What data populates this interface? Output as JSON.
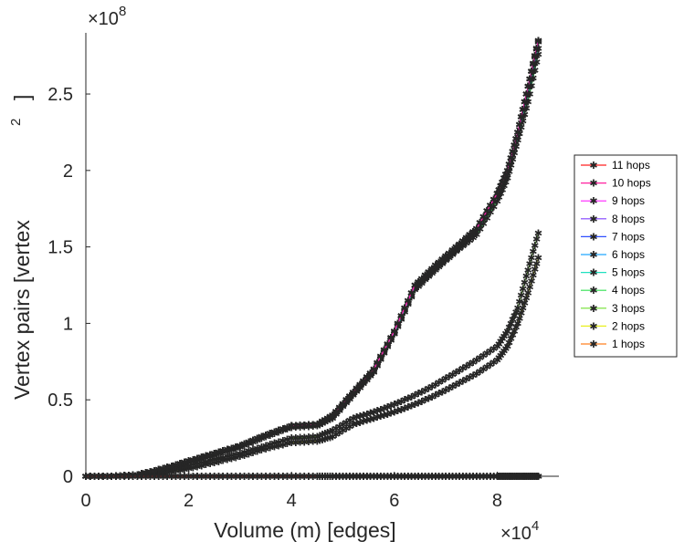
{
  "chart_data": {
    "type": "line",
    "title": "",
    "xlabel": "Volume (m) [edges]",
    "ylabel": "Vertex pairs [vertex",
    "ylabel_superscript": "2",
    "ylabel_close": "]",
    "x_multiplier": {
      "base": "×10",
      "exponent": "4"
    },
    "y_multiplier": {
      "base": "×10",
      "exponent": "8"
    },
    "xlim": [
      0,
      9.2
    ],
    "ylim": [
      0,
      2.9
    ],
    "x_ticks": [
      {
        "value": 0,
        "label": "0"
      },
      {
        "value": 2,
        "label": "2"
      },
      {
        "value": 4,
        "label": "4"
      },
      {
        "value": 6,
        "label": "6"
      },
      {
        "value": 8,
        "label": "8"
      }
    ],
    "y_ticks": [
      {
        "value": 0,
        "label": "0"
      },
      {
        "value": 0.5,
        "label": "0.5"
      },
      {
        "value": 1,
        "label": "1"
      },
      {
        "value": 1.5,
        "label": "1.5"
      },
      {
        "value": 2,
        "label": "2"
      },
      {
        "value": 2.5,
        "label": "2.5"
      }
    ],
    "grid": false,
    "legend_position": "outside-right",
    "x": [
      0,
      0.5,
      1,
      1.5,
      2,
      2.5,
      3,
      3.5,
      4,
      4.5,
      4.8,
      5.2,
      5.6,
      6,
      6.4,
      6.8,
      7.2,
      7.6,
      8,
      8.2,
      8.4,
      8.6,
      8.8
    ],
    "series": [
      {
        "name": "11 hops",
        "color": "#ff2020",
        "values": [
          0,
          0,
          0,
          0,
          0,
          0,
          0,
          0,
          0,
          0,
          0,
          0,
          0,
          0,
          0,
          0,
          0,
          0,
          0,
          0,
          0,
          0,
          0
        ]
      },
      {
        "name": "10 hops",
        "color": "#ff20a0",
        "values": [
          0,
          0,
          0.01,
          0.05,
          0.1,
          0.15,
          0.2,
          0.27,
          0.33,
          0.34,
          0.4,
          0.55,
          0.7,
          0.95,
          1.25,
          1.38,
          1.5,
          1.62,
          1.85,
          2.0,
          2.25,
          2.55,
          2.85
        ]
      },
      {
        "name": "9 hops",
        "color": "#ff20ff",
        "values": [
          0,
          0,
          0.01,
          0.05,
          0.1,
          0.15,
          0.2,
          0.27,
          0.33,
          0.34,
          0.4,
          0.55,
          0.7,
          0.95,
          1.25,
          1.38,
          1.5,
          1.62,
          1.85,
          2.0,
          2.25,
          2.55,
          2.85
        ]
      },
      {
        "name": "8 hops",
        "color": "#8040ff",
        "values": [
          0,
          0,
          0.01,
          0.05,
          0.1,
          0.15,
          0.2,
          0.27,
          0.33,
          0.34,
          0.4,
          0.55,
          0.7,
          0.95,
          1.25,
          1.38,
          1.5,
          1.62,
          1.85,
          2.0,
          2.25,
          2.55,
          2.85
        ]
      },
      {
        "name": "7 hops",
        "color": "#3050ff",
        "values": [
          0,
          0,
          0.01,
          0.05,
          0.1,
          0.15,
          0.2,
          0.27,
          0.33,
          0.34,
          0.4,
          0.55,
          0.7,
          0.95,
          1.25,
          1.38,
          1.5,
          1.62,
          1.85,
          2.0,
          2.25,
          2.55,
          2.85
        ]
      },
      {
        "name": "6 hops",
        "color": "#20a8ff",
        "values": [
          0,
          0,
          0.01,
          0.05,
          0.1,
          0.15,
          0.2,
          0.27,
          0.33,
          0.34,
          0.4,
          0.55,
          0.7,
          0.95,
          1.25,
          1.38,
          1.5,
          1.62,
          1.85,
          2.0,
          2.25,
          2.55,
          2.84
        ]
      },
      {
        "name": "5 hops",
        "color": "#20e0c0",
        "values": [
          0,
          0,
          0.01,
          0.05,
          0.1,
          0.15,
          0.2,
          0.27,
          0.33,
          0.34,
          0.39,
          0.54,
          0.69,
          0.94,
          1.23,
          1.36,
          1.48,
          1.6,
          1.83,
          1.98,
          2.22,
          2.5,
          2.8
        ]
      },
      {
        "name": "4 hops",
        "color": "#30e050",
        "values": [
          0,
          0,
          0.01,
          0.04,
          0.09,
          0.14,
          0.19,
          0.26,
          0.32,
          0.33,
          0.38,
          0.53,
          0.68,
          0.93,
          1.22,
          1.35,
          1.47,
          1.58,
          1.8,
          1.95,
          2.2,
          2.45,
          2.76
        ]
      },
      {
        "name": "3 hops",
        "color": "#70e030",
        "values": [
          0,
          0,
          0.01,
          0.03,
          0.07,
          0.11,
          0.15,
          0.2,
          0.25,
          0.26,
          0.3,
          0.38,
          0.42,
          0.47,
          0.53,
          0.6,
          0.68,
          0.76,
          0.85,
          0.95,
          1.1,
          1.35,
          1.59
        ]
      },
      {
        "name": "2 hops",
        "color": "#e8f020",
        "values": [
          0,
          0,
          0.005,
          0.02,
          0.05,
          0.09,
          0.13,
          0.18,
          0.22,
          0.23,
          0.26,
          0.34,
          0.38,
          0.42,
          0.47,
          0.53,
          0.6,
          0.67,
          0.76,
          0.85,
          1.0,
          1.2,
          1.43
        ]
      },
      {
        "name": "1 hops",
        "color": "#ff8020",
        "values": [
          0,
          0,
          0,
          0,
          0,
          0,
          0,
          0,
          0,
          0,
          0,
          0,
          0,
          0,
          0,
          0,
          0,
          0,
          0,
          0,
          0,
          0,
          0
        ]
      }
    ]
  }
}
